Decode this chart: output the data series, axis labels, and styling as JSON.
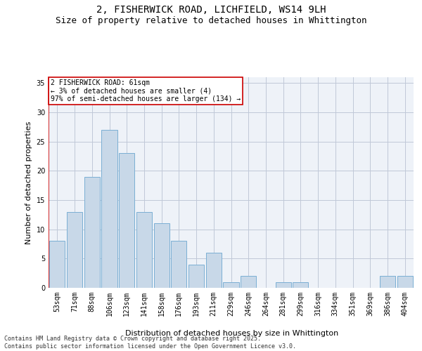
{
  "title_line1": "2, FISHERWICK ROAD, LICHFIELD, WS14 9LH",
  "title_line2": "Size of property relative to detached houses in Whittington",
  "xlabel": "Distribution of detached houses by size in Whittington",
  "ylabel": "Number of detached properties",
  "categories": [
    "53sqm",
    "71sqm",
    "88sqm",
    "106sqm",
    "123sqm",
    "141sqm",
    "158sqm",
    "176sqm",
    "193sqm",
    "211sqm",
    "229sqm",
    "246sqm",
    "264sqm",
    "281sqm",
    "299sqm",
    "316sqm",
    "334sqm",
    "351sqm",
    "369sqm",
    "386sqm",
    "404sqm"
  ],
  "values": [
    8,
    13,
    19,
    27,
    23,
    13,
    11,
    8,
    4,
    6,
    1,
    2,
    0,
    1,
    1,
    0,
    0,
    0,
    0,
    2,
    2
  ],
  "bar_color": "#c8d8e8",
  "bar_edge_color": "#7bafd4",
  "grid_color": "#c0c8d8",
  "background_color": "#eef2f8",
  "annotation_text": "2 FISHERWICK ROAD: 61sqm\n← 3% of detached houses are smaller (4)\n97% of semi-detached houses are larger (134) →",
  "annotation_box_edge_color": "#cc0000",
  "ylim": [
    0,
    36
  ],
  "yticks": [
    0,
    5,
    10,
    15,
    20,
    25,
    30,
    35
  ],
  "footer_line1": "Contains HM Land Registry data © Crown copyright and database right 2025.",
  "footer_line2": "Contains public sector information licensed under the Open Government Licence v3.0.",
  "title_fontsize": 10,
  "subtitle_fontsize": 9,
  "axis_label_fontsize": 8,
  "tick_fontsize": 7,
  "annotation_fontsize": 7,
  "footer_fontsize": 6
}
